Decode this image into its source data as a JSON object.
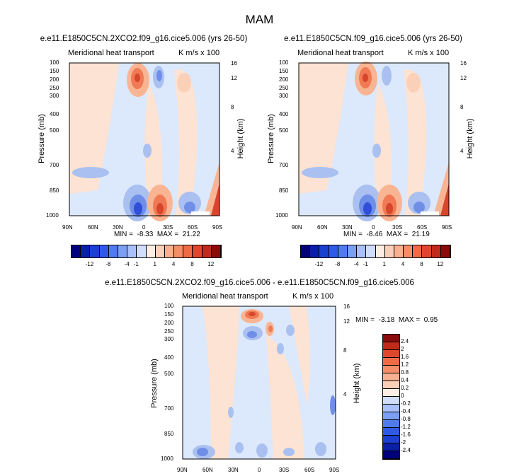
{
  "page_title": "MAM",
  "panels": [
    {
      "title": "e.e11.E1850C5CN.2XCO2.f09_g16.cice5.006 (yrs 26-50)",
      "subtitle_left": "Meridional heat transport",
      "subtitle_right": "K m/s x 100",
      "ylabel": "Pressure (mb)",
      "ylabel_right": "Height (km)",
      "min_label": "MIN =",
      "min_value": "-8.33",
      "max_label": "MAX =",
      "max_value": "21.22"
    },
    {
      "title": "e.e11.E1850C5CN.f09_g16.cice5.006 (yrs 26-50)",
      "subtitle_left": "Meridional heat transport",
      "subtitle_right": "K m/s x 100",
      "ylabel": "Pressure (mb)",
      "ylabel_right": "Height (km)",
      "min_label": "MIN =",
      "min_value": "-8.46",
      "max_label": "MAX =",
      "max_value": "21.19"
    },
    {
      "title": "e.e11.E1850C5CN.2XCO2.f09_g16.cice5.006 - e.e11.E1850C5CN.f09_g16.cice5.006",
      "subtitle_left": "Meridional heat transport",
      "subtitle_right": "K m/s x 100",
      "ylabel": "Pressure (mb)",
      "ylabel_right": "Height (km)",
      "min_label": "MIN =",
      "min_value": "-3.18",
      "max_label": "MAX =",
      "max_value": "0.95"
    }
  ],
  "colors": {
    "blue_dark": "#2f4fd8",
    "blue_mid": "#6f8ee8",
    "blue_light": "#a9c0f0",
    "blue_pale": "#dce8fb",
    "red_pale": "#fde3d3",
    "red_light": "#f9b593",
    "red_mid": "#ef7a54",
    "red_dark": "#d7452a"
  },
  "chart_data": [
    {
      "type": "heatmap",
      "title": "e.e11.E1850C5CN.2XCO2.f09_g16.cice5.006 (yrs 26-50)",
      "xlabel": "",
      "ylabel": "Pressure (mb)",
      "ylabel_right": "Height (km)",
      "x_ticks": [
        "90N",
        "60N",
        "30N",
        "0",
        "30S",
        "60S",
        "90S"
      ],
      "y_ticks": [
        "100",
        "150",
        "200",
        "250",
        "300",
        "400",
        "500",
        "700",
        "850",
        "1000"
      ],
      "y_ticks_right": [
        "16",
        "12",
        "8",
        "4"
      ],
      "scale": "log-pressure",
      "min": -8.33,
      "max": 21.22
    },
    {
      "type": "heatmap",
      "title": "e.e11.E1850C5CN.f09_g16.cice5.006 (yrs 26-50)",
      "xlabel": "",
      "ylabel": "Pressure (mb)",
      "ylabel_right": "Height (km)",
      "x_ticks": [
        "90N",
        "60N",
        "30N",
        "0",
        "30S",
        "60S",
        "90S"
      ],
      "y_ticks": [
        "100",
        "150",
        "200",
        "250",
        "300",
        "400",
        "500",
        "700",
        "850",
        "1000"
      ],
      "y_ticks_right": [
        "16",
        "12",
        "8",
        "4"
      ],
      "scale": "log-pressure",
      "min": -8.46,
      "max": 21.19
    },
    {
      "type": "heatmap",
      "title": "e.e11.E1850C5CN.2XCO2.f09_g16.cice5.006 - e.e11.E1850C5CN.f09_g16.cice5.006",
      "xlabel": "",
      "ylabel": "Pressure (mb)",
      "ylabel_right": "Height (km)",
      "x_ticks": [
        "90N",
        "60N",
        "30N",
        "0",
        "30S",
        "60S",
        "90S"
      ],
      "y_ticks": [
        "100",
        "150",
        "200",
        "250",
        "300",
        "400",
        "500",
        "700",
        "850",
        "1000"
      ],
      "y_ticks_right": [
        "16",
        "12",
        "8",
        "4"
      ],
      "scale": "log-pressure",
      "min": -3.18,
      "max": 0.95
    }
  ],
  "colorbar_top": {
    "labels": [
      "-12",
      "-8",
      "-4",
      "-1",
      "1",
      "4",
      "8",
      "12"
    ],
    "colors": [
      "#00007f",
      "#0a1fa8",
      "#1b3fd0",
      "#2f5ae8",
      "#4f7bef",
      "#7b9ff4",
      "#a9c0f8",
      "#d0defb",
      "#fdeee4",
      "#fcd0b8",
      "#f9b090",
      "#f58d69",
      "#ef6a45",
      "#e0462c",
      "#c12a1a",
      "#8b0a0a"
    ]
  },
  "colorbar_bottom": {
    "labels": [
      "2.4",
      "2",
      "1.6",
      "1.2",
      "0.8",
      "0.4",
      "0.2",
      "0",
      "-0.2",
      "-0.4",
      "-0.8",
      "-1.2",
      "-1.6",
      "-2",
      "-2.4"
    ],
    "colors": [
      "#8b0a0a",
      "#c12a1a",
      "#e0462c",
      "#ef6a45",
      "#f58d69",
      "#f9b090",
      "#fcd0b8",
      "#fdeee4",
      "#d0defb",
      "#a9c0f8",
      "#7b9ff4",
      "#4f7bef",
      "#2f5ae8",
      "#1b3fd0",
      "#0a1fa8",
      "#00007f"
    ]
  }
}
